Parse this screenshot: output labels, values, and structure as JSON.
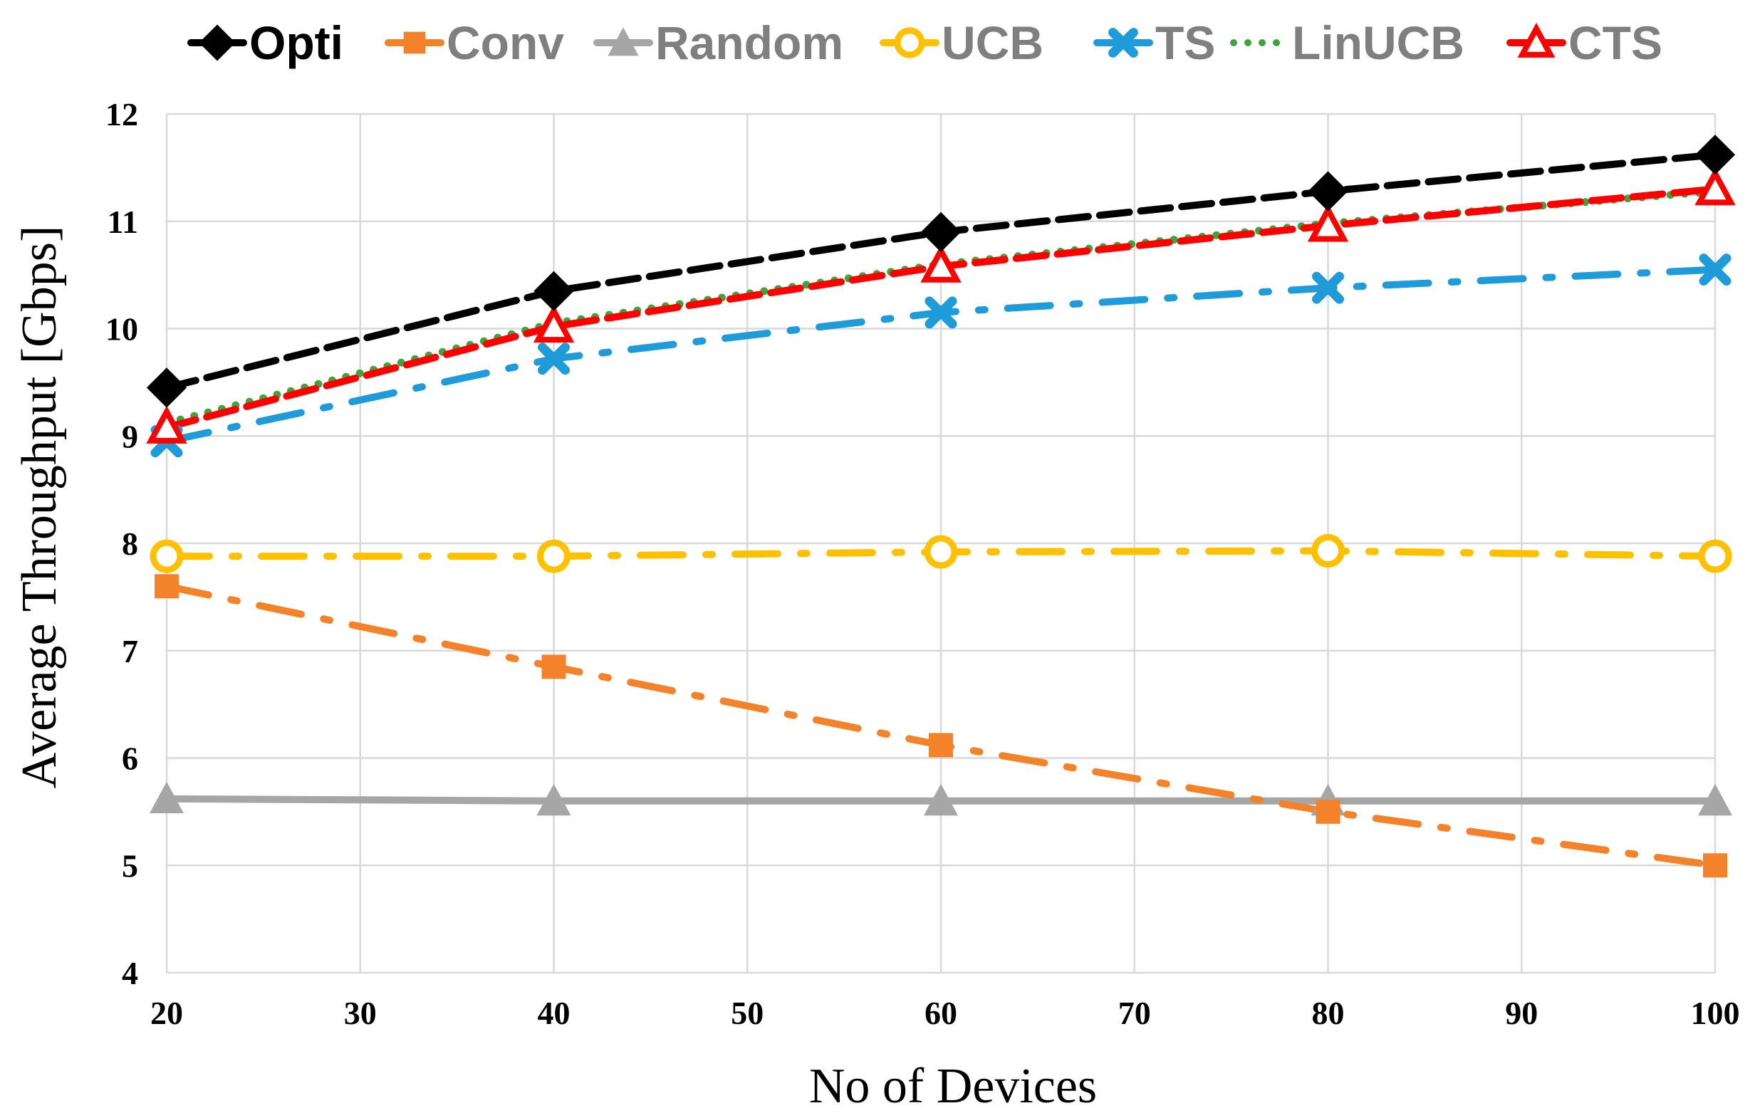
{
  "chart_data": {
    "type": "line",
    "xlabel": "No of Devices",
    "ylabel": "Average Throughput [Gbps]",
    "xlim": [
      20,
      100
    ],
    "ylim": [
      4,
      12
    ],
    "x_ticks": [
      20,
      30,
      40,
      50,
      60,
      70,
      80,
      90,
      100
    ],
    "y_ticks": [
      4,
      5,
      6,
      7,
      8,
      9,
      10,
      11,
      12
    ],
    "grid": true,
    "legend_position": "top",
    "x": [
      20,
      40,
      60,
      80,
      100
    ],
    "series": [
      {
        "name": "Opti",
        "values": [
          9.45,
          10.35,
          10.9,
          11.28,
          11.62
        ],
        "color": "#000000",
        "marker": "diamond",
        "dash": "dashed",
        "legend_color": "#000000"
      },
      {
        "name": "Conv",
        "values": [
          7.6,
          6.85,
          6.12,
          5.5,
          5.0
        ],
        "color": "#F4822A",
        "marker": "square",
        "dash": "dashdot",
        "legend_color": "#7F7F7F"
      },
      {
        "name": "Random",
        "values": [
          5.62,
          5.6,
          5.6,
          5.6,
          5.6
        ],
        "color": "#A6A6A6",
        "marker": "triangle",
        "dash": "solid",
        "legend_color": "#7F7F7F"
      },
      {
        "name": "UCB",
        "values": [
          7.88,
          7.88,
          7.92,
          7.93,
          7.88
        ],
        "color": "#FFC000",
        "marker": "circle",
        "dash": "dashdot",
        "legend_color": "#7F7F7F"
      },
      {
        "name": "TS",
        "values": [
          8.95,
          9.72,
          10.15,
          10.38,
          10.55
        ],
        "color": "#1F9BDA",
        "marker": "x",
        "dash": "dashdot",
        "legend_color": "#7F7F7F"
      },
      {
        "name": "LinUCB",
        "values": [
          9.12,
          10.05,
          10.6,
          10.98,
          11.28
        ],
        "color": "#3FA43A",
        "marker": "none",
        "dash": "dotted",
        "legend_color": "#7F7F7F"
      },
      {
        "name": "CTS",
        "values": [
          9.08,
          10.02,
          10.58,
          10.96,
          11.3
        ],
        "color": "#FF0000",
        "marker": "triangle-open",
        "dash": "dashed",
        "legend_color": "#7F7F7F"
      }
    ]
  }
}
